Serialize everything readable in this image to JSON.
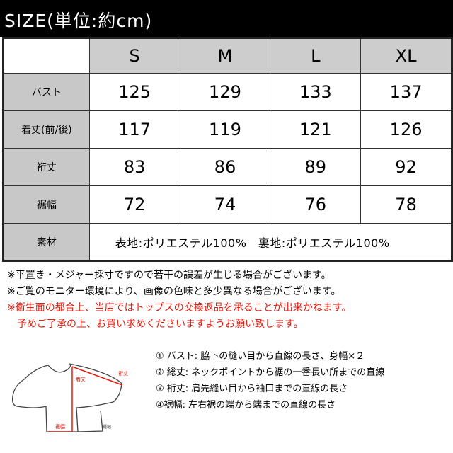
{
  "title": "SIZE(単位:約cm)",
  "table": {
    "sizes": [
      "S",
      "M",
      "L",
      "XL"
    ],
    "rows": [
      {
        "label": "バスト",
        "values": [
          "125",
          "129",
          "133",
          "137"
        ]
      },
      {
        "label": "着丈(前/後)",
        "values": [
          "117",
          "119",
          "121",
          "126"
        ]
      },
      {
        "label": "裄丈",
        "values": [
          "83",
          "86",
          "89",
          "92"
        ]
      },
      {
        "label": "裾幅",
        "values": [
          "72",
          "74",
          "76",
          "78"
        ]
      }
    ],
    "material": {
      "label": "素材",
      "value": "表地:ポリエステル100%　裏地:ポリエステル100%"
    }
  },
  "notes": [
    "※平置き・メジャー採寸ですので若干の誤差が生じる場合がございます。",
    "※ご覧のモニター環境により、画像の色味と多少異なる場合がございます。"
  ],
  "warning": [
    "※衛生面の都合上、当店ではトップスの交換返品を承ることが出来かねます。",
    "予めご了承の上、お買い求めくださいますようお願い致します。"
  ],
  "diagram": {
    "labels": {
      "sleeve": "裄丈",
      "length": "着丈",
      "hem": "裾幅",
      "hem2": "裾幅"
    },
    "line_color": "#e8180c"
  },
  "legend": [
    "① バスト: 脇下の縫い目から直線の長さ、身幅×２",
    "② 総丈: ネックポイントから裾の一番長い所までの直線",
    "③ 裄丈:  肩先縫い目から袖口までの直線の長さ",
    "④裾幅:   左右裾の端から端までの直線の長さ"
  ]
}
